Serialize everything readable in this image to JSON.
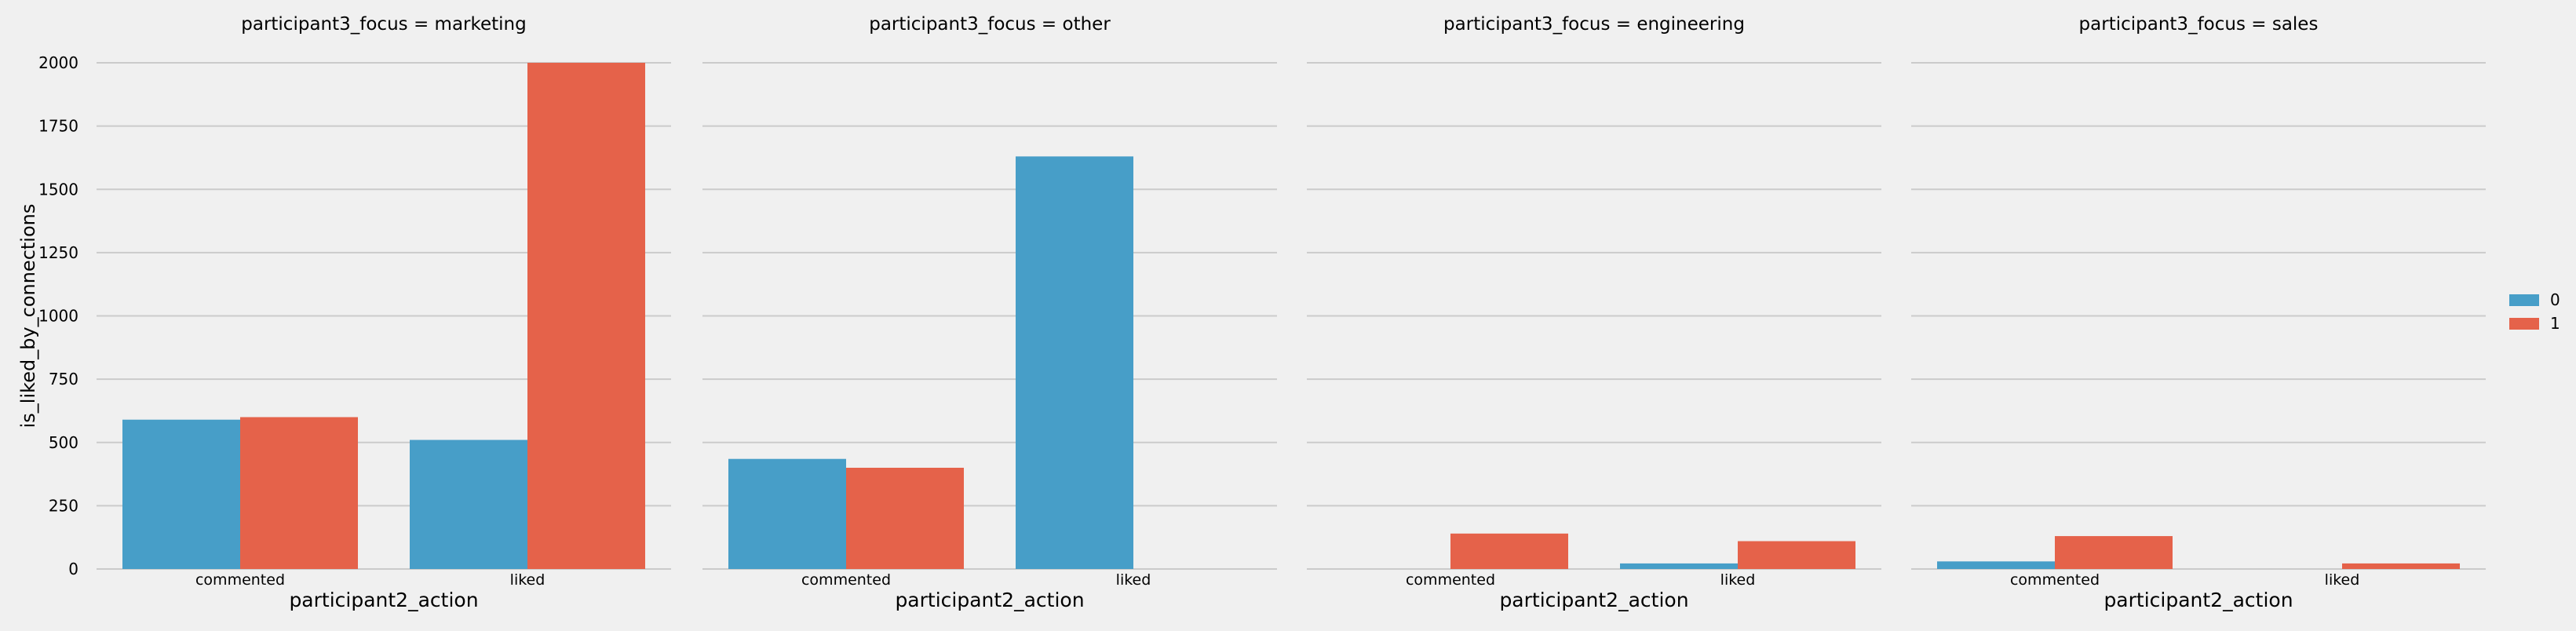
{
  "chart_data": {
    "type": "bar",
    "ylabel": "is_liked_by_connections",
    "xlabel": "participant2_action",
    "ylim": [
      0,
      2000
    ],
    "yticks": [
      0,
      250,
      500,
      750,
      1000,
      1250,
      1500,
      1750,
      2000
    ],
    "categories": [
      "commented",
      "liked"
    ],
    "grid": true,
    "legend": {
      "placement": "right",
      "entries": [
        "0",
        "1"
      ]
    },
    "colors": {
      "0": "#479ec8",
      "1": "#e5624a"
    },
    "facets": [
      {
        "title": "participant3_focus = marketing",
        "series": [
          {
            "name": "0",
            "values": [
              590,
              510
            ]
          },
          {
            "name": "1",
            "values": [
              600,
              2000
            ]
          }
        ]
      },
      {
        "title": "participant3_focus = other",
        "series": [
          {
            "name": "0",
            "values": [
              435,
              1630
            ]
          },
          {
            "name": "1",
            "values": [
              400,
              0
            ]
          }
        ]
      },
      {
        "title": "participant3_focus = engineering",
        "series": [
          {
            "name": "0",
            "values": [
              0,
              22
            ]
          },
          {
            "name": "1",
            "values": [
              140,
              110
            ]
          }
        ]
      },
      {
        "title": "participant3_focus = sales",
        "series": [
          {
            "name": "0",
            "values": [
              30,
              0
            ]
          },
          {
            "name": "1",
            "values": [
              130,
              22
            ]
          }
        ]
      }
    ]
  }
}
